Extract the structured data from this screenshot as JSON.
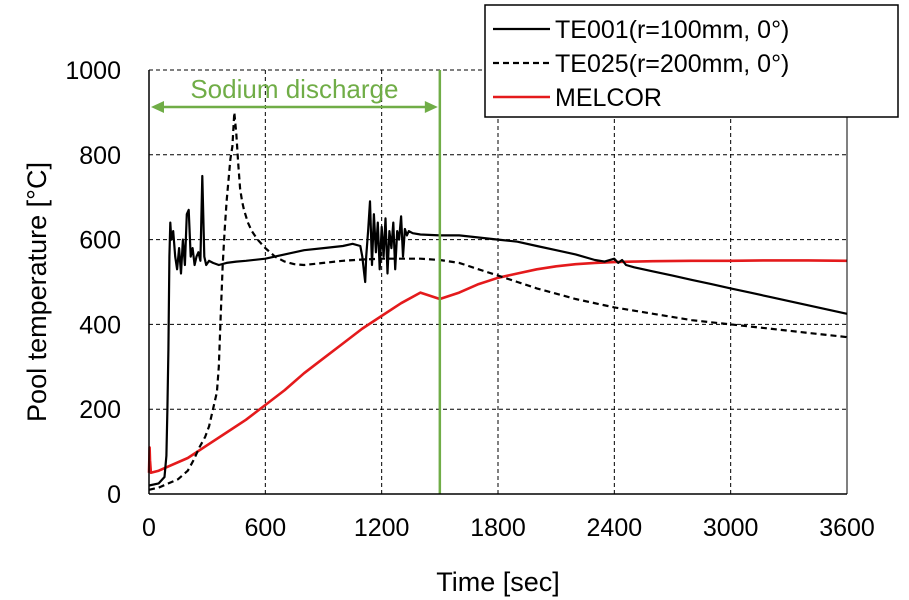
{
  "chart_data": {
    "type": "line",
    "xlabel": "Time  [sec]",
    "ylabel": "Pool temperature  [°C]",
    "xlim": [
      0,
      3600
    ],
    "ylim": [
      0,
      1000
    ],
    "xticks": [
      0,
      600,
      1200,
      1800,
      2400,
      3000,
      3600
    ],
    "yticks": [
      0,
      200,
      400,
      600,
      800,
      1000
    ],
    "grid": "dashed",
    "legend_position": "top-right",
    "annotation": {
      "text": "Sodium discharge",
      "range": [
        0,
        1500
      ],
      "color": "#70ad47"
    },
    "vline": {
      "x": 1500,
      "color": "#70ad47"
    },
    "series": [
      {
        "name": "TE001(r=100mm, 0°)",
        "style": "solid",
        "color": "#000000",
        "x": [
          0,
          50,
          80,
          90,
          95,
          100,
          105,
          110,
          115,
          125,
          135,
          145,
          155,
          165,
          175,
          185,
          195,
          205,
          215,
          225,
          235,
          245,
          255,
          265,
          275,
          285,
          295,
          310,
          330,
          360,
          400,
          450,
          500,
          600,
          700,
          800,
          900,
          1000,
          1050,
          1090,
          1100,
          1110,
          1115,
          1120,
          1130,
          1140,
          1150,
          1160,
          1170,
          1180,
          1190,
          1200,
          1210,
          1220,
          1230,
          1240,
          1250,
          1260,
          1270,
          1280,
          1290,
          1300,
          1310,
          1320,
          1330,
          1340,
          1360,
          1400,
          1500,
          1600,
          1700,
          1800,
          1900,
          2000,
          2100,
          2200,
          2300,
          2350,
          2400,
          2420,
          2440,
          2460,
          2500,
          2600,
          2700,
          2800,
          2900,
          3000,
          3100,
          3200,
          3300,
          3400,
          3500,
          3600
        ],
        "y": [
          20,
          25,
          40,
          90,
          200,
          340,
          560,
          640,
          600,
          620,
          560,
          530,
          580,
          520,
          600,
          540,
          660,
          670,
          560,
          580,
          540,
          560,
          570,
          550,
          750,
          560,
          540,
          550,
          545,
          540,
          545,
          548,
          550,
          555,
          565,
          575,
          580,
          585,
          590,
          585,
          560,
          520,
          500,
          560,
          620,
          690,
          540,
          660,
          570,
          640,
          530,
          630,
          560,
          650,
          520,
          620,
          580,
          640,
          530,
          620,
          600,
          655,
          560,
          625,
          610,
          620,
          615,
          612,
          610,
          610,
          605,
          600,
          595,
          585,
          575,
          565,
          552,
          548,
          555,
          545,
          552,
          540,
          535,
          525,
          515,
          505,
          495,
          485,
          475,
          465,
          455,
          445,
          435,
          425
        ]
      },
      {
        "name": "TE025(r=200mm, 0°)",
        "style": "dashed",
        "color": "#000000",
        "x": [
          0,
          50,
          100,
          150,
          200,
          230,
          260,
          290,
          310,
          330,
          350,
          360,
          370,
          380,
          390,
          400,
          410,
          420,
          430,
          440,
          450,
          460,
          470,
          480,
          490,
          510,
          530,
          560,
          600,
          650,
          700,
          750,
          800,
          900,
          1000,
          1100,
          1200,
          1300,
          1400,
          1500,
          1600,
          1700,
          1800,
          1900,
          2000,
          2200,
          2400,
          2600,
          2800,
          3000,
          3200,
          3400,
          3600
        ],
        "y": [
          10,
          15,
          25,
          35,
          55,
          80,
          110,
          135,
          160,
          200,
          240,
          300,
          420,
          540,
          620,
          690,
          740,
          790,
          820,
          900,
          850,
          780,
          720,
          690,
          670,
          640,
          620,
          600,
          580,
          560,
          548,
          542,
          540,
          545,
          550,
          553,
          555,
          555,
          555,
          552,
          545,
          530,
          515,
          500,
          485,
          460,
          440,
          425,
          410,
          400,
          390,
          380,
          370
        ]
      },
      {
        "name": "MELCOR",
        "style": "solid",
        "color": "#e41a1c",
        "x": [
          0,
          3,
          5,
          10,
          50,
          100,
          200,
          300,
          400,
          500,
          600,
          700,
          800,
          900,
          1000,
          1100,
          1200,
          1300,
          1400,
          1500,
          1600,
          1700,
          1800,
          1900,
          2000,
          2100,
          2200,
          2300,
          2400,
          2500,
          2600,
          2800,
          3000,
          3200,
          3400,
          3600
        ],
        "y": [
          50,
          110,
          80,
          50,
          55,
          65,
          85,
          115,
          145,
          175,
          210,
          245,
          285,
          320,
          355,
          390,
          420,
          450,
          475,
          460,
          475,
          495,
          510,
          520,
          530,
          537,
          542,
          545,
          547,
          548,
          549,
          550,
          550,
          551,
          551,
          550
        ]
      }
    ]
  }
}
